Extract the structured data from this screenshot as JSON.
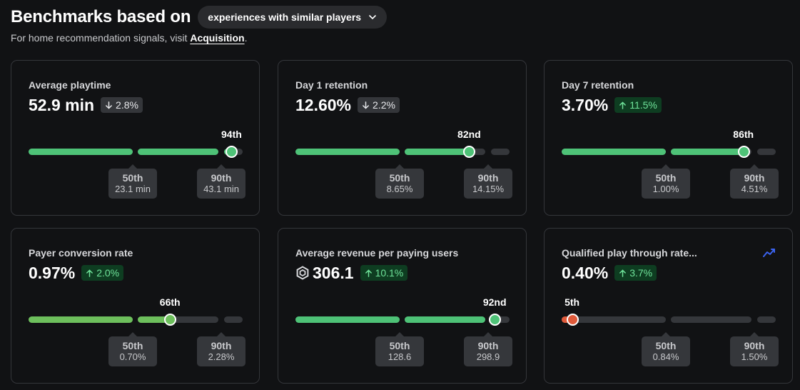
{
  "header": {
    "title": "Benchmarks based on",
    "dropdown_label": "experiences with similar players",
    "subtitle_prefix": "For home recommendation signals, visit ",
    "subtitle_link": "Acquisition",
    "subtitle_suffix": "."
  },
  "colors": {
    "green": "#4ec277",
    "lime": "#6dbf5c",
    "red": "#e05a3a",
    "up_text": "#6fe39a"
  },
  "cards": [
    {
      "title": "Average playtime",
      "value": "52.9 min",
      "change": "2.8%",
      "direction": "down",
      "percentile_label": "94th",
      "percentile": 94,
      "p50": {
        "label": "50th",
        "value": "23.1 min"
      },
      "p90": {
        "label": "90th",
        "value": "43.1 min"
      }
    },
    {
      "title": "Day 1 retention",
      "value": "12.60%",
      "change": "2.2%",
      "direction": "down",
      "percentile_label": "82nd",
      "percentile": 82,
      "p50": {
        "label": "50th",
        "value": "8.65%"
      },
      "p90": {
        "label": "90th",
        "value": "14.15%"
      }
    },
    {
      "title": "Day 7 retention",
      "value": "3.70%",
      "change": "11.5%",
      "direction": "up",
      "percentile_label": "86th",
      "percentile": 86,
      "p50": {
        "label": "50th",
        "value": "1.00%"
      },
      "p90": {
        "label": "90th",
        "value": "4.51%"
      }
    },
    {
      "title": "Payer conversion rate",
      "value": "0.97%",
      "change": "2.0%",
      "direction": "up",
      "percentile_label": "66th",
      "percentile": 66,
      "p50": {
        "label": "50th",
        "value": "0.70%"
      },
      "p90": {
        "label": "90th",
        "value": "2.28%"
      }
    },
    {
      "title": "Average revenue per paying users",
      "value": "306.1",
      "change": "10.1%",
      "direction": "up",
      "currency_icon": "robux-icon",
      "percentile_label": "92nd",
      "percentile": 92,
      "p50": {
        "label": "50th",
        "value": "128.6"
      },
      "p90": {
        "label": "90th",
        "value": "298.9"
      }
    },
    {
      "title": "Qualified play through rate...",
      "value": "0.40%",
      "change": "3.7%",
      "direction": "up",
      "trend_icon": "trend-chart-icon",
      "percentile_label": "5th",
      "percentile": 5,
      "p50": {
        "label": "50th",
        "value": "0.84%"
      },
      "p90": {
        "label": "90th",
        "value": "1.50%"
      }
    }
  ]
}
